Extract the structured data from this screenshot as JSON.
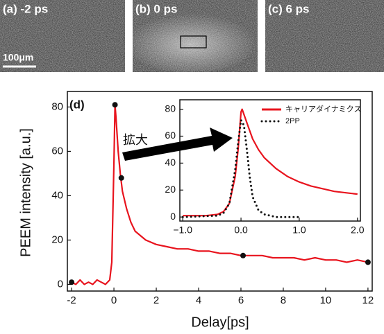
{
  "images": [
    {
      "label": "(a) -2 ps"
    },
    {
      "label": "(b) 0 ps"
    },
    {
      "label": "(c) 6 ps"
    }
  ],
  "scale_bar": "100μm",
  "chart_data": [
    {
      "type": "line",
      "panel_label": "(d)",
      "annotation": "拡大",
      "x_label": "Delay[ps]",
      "y_label": "PEEM intensity [a.u.]",
      "xlim": [
        -2.2,
        12.2
      ],
      "ylim": [
        -3,
        87
      ],
      "xticks": [
        -2,
        0,
        2,
        4,
        6,
        8,
        10,
        12
      ],
      "yticks": [
        0,
        20,
        40,
        60,
        80
      ],
      "series": [
        {
          "color": "#e8141e",
          "x": [
            -2.0,
            -1.8,
            -1.6,
            -1.4,
            -1.2,
            -1.0,
            -0.8,
            -0.6,
            -0.4,
            -0.2,
            -0.1,
            0.0,
            0.05,
            0.1,
            0.2,
            0.3,
            0.4,
            0.6,
            0.8,
            1.0,
            1.5,
            2.0,
            2.5,
            3.0,
            3.5,
            4.0,
            4.5,
            5.0,
            5.5,
            6.0,
            6.5,
            7.0,
            7.5,
            8.0,
            8.5,
            9.0,
            9.5,
            10.0,
            10.5,
            11.0,
            11.5,
            12.0
          ],
          "values": [
            1,
            0,
            2,
            0,
            1,
            0,
            2,
            1,
            0,
            2,
            10,
            55,
            81,
            75,
            60,
            50,
            42,
            34,
            28,
            24,
            20,
            18,
            17,
            16,
            16,
            15,
            15,
            14,
            14,
            13,
            13,
            13,
            12,
            12,
            12,
            11,
            12,
            11,
            11,
            10,
            11,
            10
          ]
        },
        {
          "color": "#111111",
          "marker": "dot",
          "x": [
            -2.0,
            0.05,
            0.35,
            6.1,
            12.0
          ],
          "values": [
            1,
            81,
            48,
            13,
            10
          ]
        }
      ]
    },
    {
      "type": "line",
      "legend": "upper right",
      "xlim": [
        -1.05,
        2.05
      ],
      "ylim": [
        -3,
        87
      ],
      "xticks": [
        {
          "value": -1.0,
          "label": "−1.0"
        },
        {
          "value": 0,
          "label": "0.0"
        },
        {
          "value": 1,
          "label": "1.0"
        },
        {
          "value": 2,
          "label": "2.0"
        }
      ],
      "yticks": [
        0,
        20,
        40,
        60,
        80
      ],
      "series": [
        {
          "name": "キャリアダイナミクス",
          "color": "#e8141e",
          "x": [
            -1.0,
            -0.8,
            -0.6,
            -0.4,
            -0.3,
            -0.2,
            -0.1,
            -0.05,
            0.0,
            0.02,
            0.1,
            0.2,
            0.3,
            0.4,
            0.6,
            0.8,
            1.0,
            1.2,
            1.4,
            1.6,
            1.8,
            2.0
          ],
          "values": [
            1,
            1,
            1,
            2,
            4,
            10,
            30,
            50,
            78,
            80,
            70,
            58,
            50,
            44,
            36,
            30,
            26,
            23,
            21,
            19,
            18,
            17
          ]
        },
        {
          "name": "2PP",
          "color": "#111111",
          "dash": "dotted",
          "x": [
            -1.0,
            -0.4,
            -0.3,
            -0.2,
            -0.1,
            -0.05,
            0.0,
            0.05,
            0.1,
            0.15,
            0.2,
            0.3,
            0.4,
            0.6,
            1.0
          ],
          "values": [
            0,
            1,
            3,
            10,
            35,
            55,
            72,
            68,
            50,
            30,
            15,
            5,
            2,
            0,
            0
          ]
        }
      ]
    }
  ]
}
